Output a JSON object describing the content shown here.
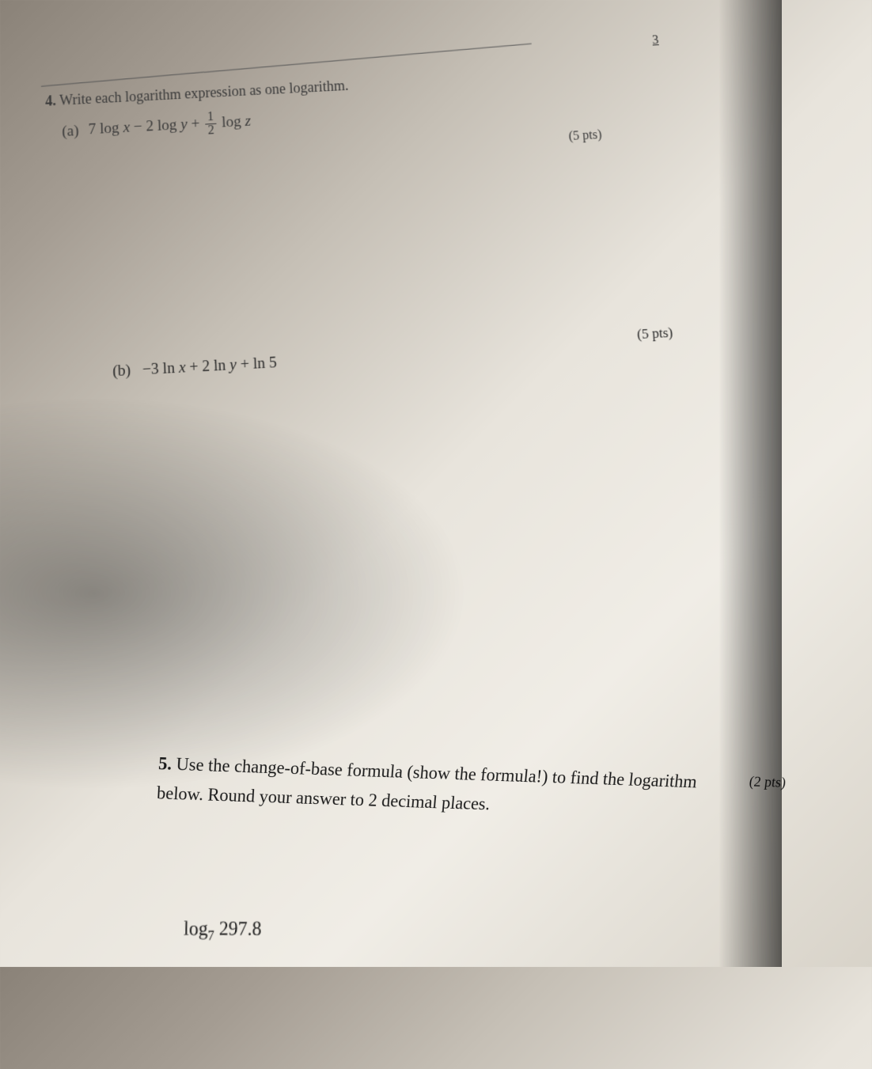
{
  "page_number": "3",
  "problem4": {
    "heading_num": "4.",
    "heading_text": "Write each logarithm expression as one logarithm.",
    "part_a": {
      "label": "(a)",
      "expr_prefix": "7 log",
      "var_x": "x",
      "minus": " − 2 log ",
      "var_y": "y",
      "plus": " + ",
      "frac_num": "1",
      "frac_den": "2",
      "log_z": " log ",
      "var_z": "z",
      "points": "(5 pts)"
    },
    "part_b": {
      "label": "(b)",
      "expr": "−3 ln ",
      "var_x": "x",
      "plus1": " + 2 ln ",
      "var_y": "y",
      "plus2": " + ln 5",
      "points": "(5 pts)"
    }
  },
  "problem5": {
    "heading_num": "5.",
    "text1": "Use the change-of-base formula (show the formula!) to find the logarithm",
    "text2": "below. Round your answer to 2 decimal places.",
    "points": "(2 pts)",
    "log_label": "log",
    "log_base": "7",
    "log_arg": " 297.8"
  },
  "colors": {
    "text_dark": "#1a1a1a",
    "text_mid": "#3a3a3a",
    "paper_bg": "#e8e4dc"
  },
  "fonts": {
    "body_family": "Times New Roman",
    "heading_size_pt": 18,
    "math_size_pt": 19
  }
}
